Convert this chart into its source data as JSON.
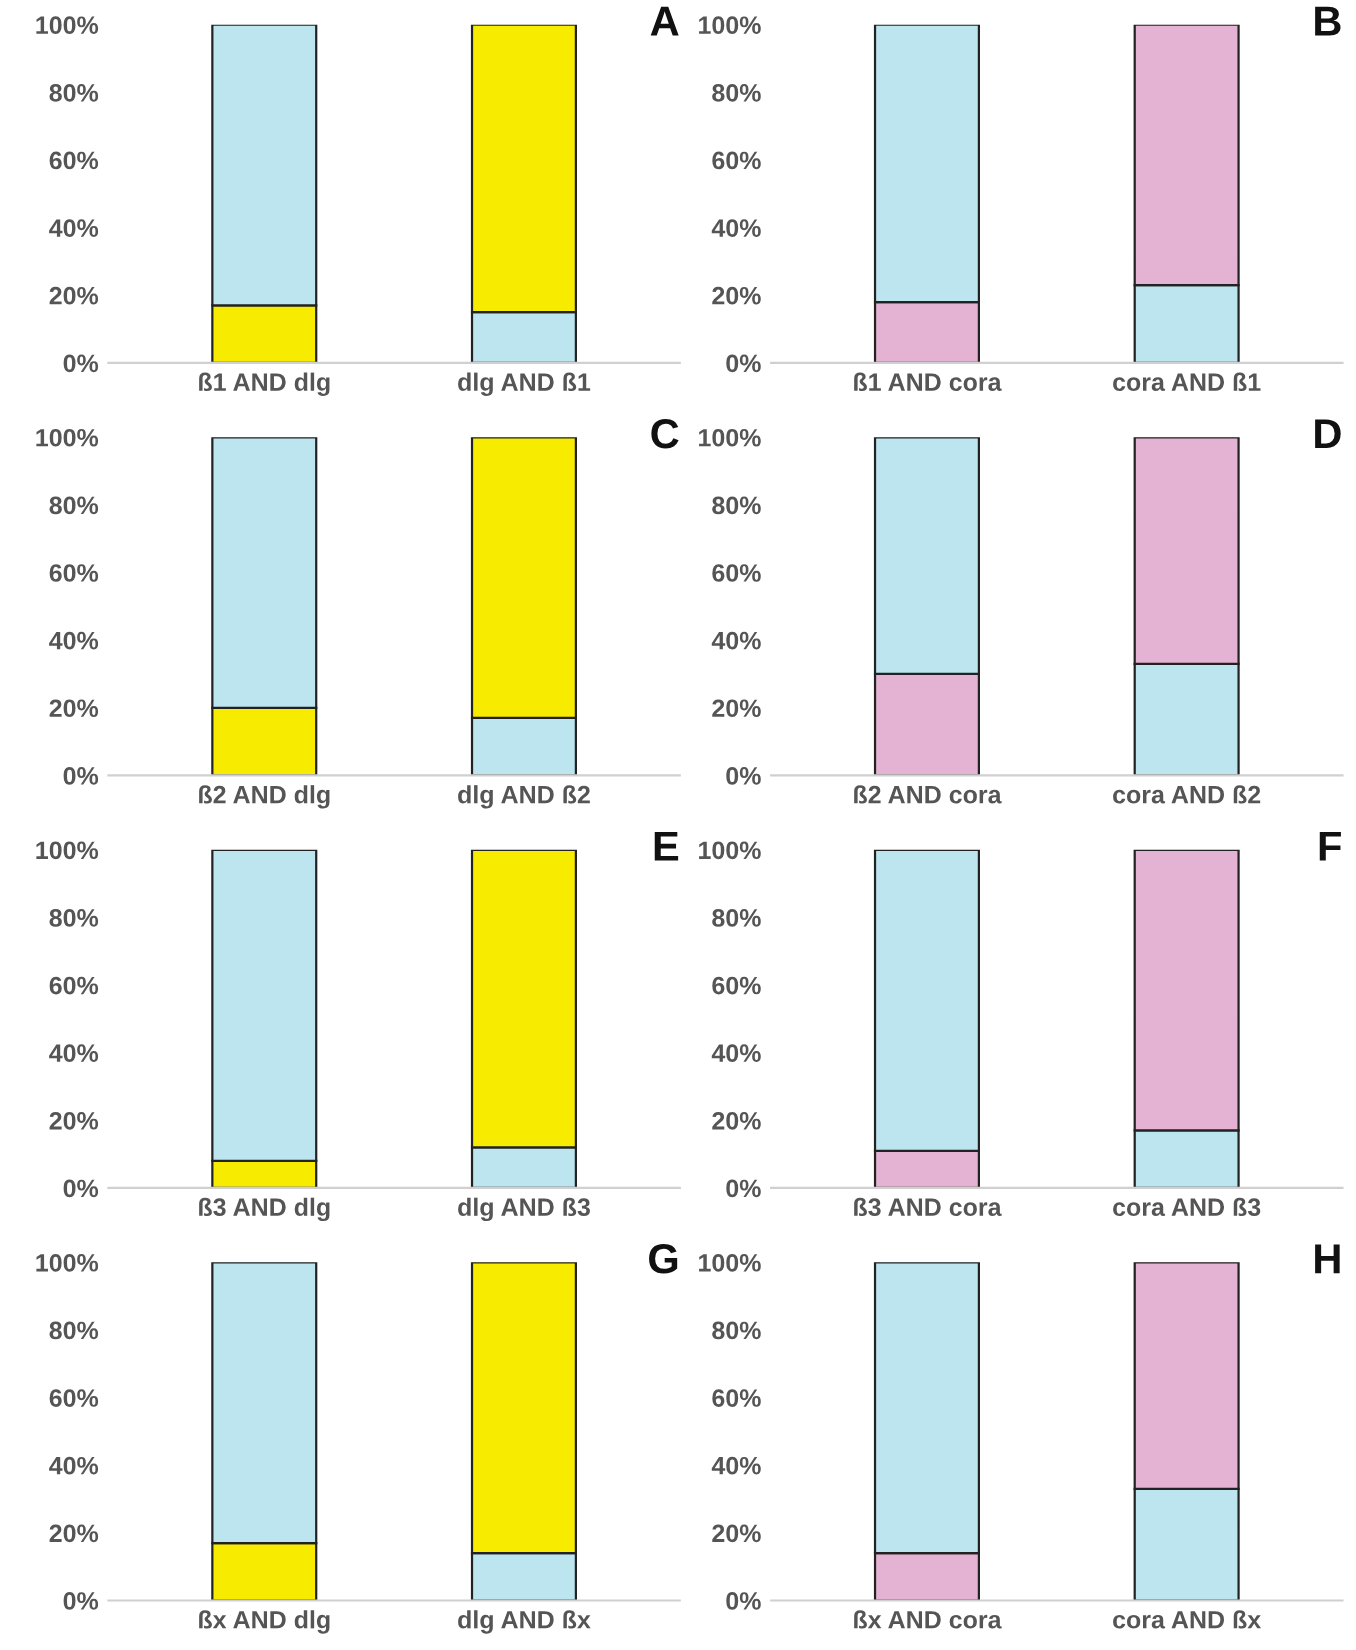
{
  "chart_data": [
    {
      "type": "bar",
      "title": "A",
      "stacked": true,
      "categories": [
        "ß1 AND dlg",
        "dlg AND ß1"
      ],
      "series": [
        {
          "colors": [
            "#f7ec00",
            "#bde5f0"
          ],
          "values": [
            17,
            15
          ]
        },
        {
          "colors": [
            "#bde5f0",
            "#f7ec00"
          ],
          "values": [
            83,
            85
          ]
        }
      ],
      "ylim": [
        0,
        100
      ],
      "yticks": [
        {
          "value": 0,
          "label": "0%"
        },
        {
          "value": 20,
          "label": "20%"
        },
        {
          "value": 40,
          "label": "40%"
        },
        {
          "value": 60,
          "label": "60%"
        },
        {
          "value": 80,
          "label": "80%"
        },
        {
          "value": 100,
          "label": "100%"
        }
      ],
      "grid": false
    },
    {
      "type": "bar",
      "title": "B",
      "stacked": true,
      "categories": [
        "ß1 AND cora",
        "cora AND ß1"
      ],
      "series": [
        {
          "colors": [
            "#e4b3d3",
            "#bde5f0"
          ],
          "values": [
            18,
            23
          ]
        },
        {
          "colors": [
            "#bde5f0",
            "#e4b3d3"
          ],
          "values": [
            82,
            77
          ]
        }
      ],
      "ylim": [
        0,
        100
      ],
      "yticks": [
        {
          "value": 0,
          "label": "0%"
        },
        {
          "value": 20,
          "label": "20%"
        },
        {
          "value": 40,
          "label": "40%"
        },
        {
          "value": 60,
          "label": "60%"
        },
        {
          "value": 80,
          "label": "80%"
        },
        {
          "value": 100,
          "label": "100%"
        }
      ],
      "grid": false
    },
    {
      "type": "bar",
      "title": "C",
      "stacked": true,
      "categories": [
        "ß2 AND dlg",
        "dlg AND ß2"
      ],
      "series": [
        {
          "colors": [
            "#f7ec00",
            "#bde5f0"
          ],
          "values": [
            20,
            17
          ]
        },
        {
          "colors": [
            "#bde5f0",
            "#f7ec00"
          ],
          "values": [
            80,
            83
          ]
        }
      ],
      "ylim": [
        0,
        100
      ],
      "yticks": [
        {
          "value": 0,
          "label": "0%"
        },
        {
          "value": 20,
          "label": "20%"
        },
        {
          "value": 40,
          "label": "40%"
        },
        {
          "value": 60,
          "label": "60%"
        },
        {
          "value": 80,
          "label": "80%"
        },
        {
          "value": 100,
          "label": "100%"
        }
      ],
      "grid": false
    },
    {
      "type": "bar",
      "title": "D",
      "stacked": true,
      "categories": [
        "ß2 AND cora",
        "cora AND ß2"
      ],
      "series": [
        {
          "colors": [
            "#e4b3d3",
            "#bde5f0"
          ],
          "values": [
            30,
            33
          ]
        },
        {
          "colors": [
            "#bde5f0",
            "#e4b3d3"
          ],
          "values": [
            70,
            67
          ]
        }
      ],
      "ylim": [
        0,
        100
      ],
      "yticks": [
        {
          "value": 0,
          "label": "0%"
        },
        {
          "value": 20,
          "label": "20%"
        },
        {
          "value": 40,
          "label": "40%"
        },
        {
          "value": 60,
          "label": "60%"
        },
        {
          "value": 80,
          "label": "80%"
        },
        {
          "value": 100,
          "label": "100%"
        }
      ],
      "grid": false
    },
    {
      "type": "bar",
      "title": "E",
      "stacked": true,
      "categories": [
        "ß3 AND dlg",
        "dlg AND ß3"
      ],
      "series": [
        {
          "colors": [
            "#f7ec00",
            "#bde5f0"
          ],
          "values": [
            8,
            12
          ]
        },
        {
          "colors": [
            "#bde5f0",
            "#f7ec00"
          ],
          "values": [
            92,
            88
          ]
        }
      ],
      "ylim": [
        0,
        100
      ],
      "yticks": [
        {
          "value": 0,
          "label": "0%"
        },
        {
          "value": 20,
          "label": "20%"
        },
        {
          "value": 40,
          "label": "40%"
        },
        {
          "value": 60,
          "label": "60%"
        },
        {
          "value": 80,
          "label": "80%"
        },
        {
          "value": 100,
          "label": "100%"
        }
      ],
      "grid": false
    },
    {
      "type": "bar",
      "title": "F",
      "stacked": true,
      "categories": [
        "ß3 AND cora",
        "cora AND ß3"
      ],
      "series": [
        {
          "colors": [
            "#e4b3d3",
            "#bde5f0"
          ],
          "values": [
            11,
            17
          ]
        },
        {
          "colors": [
            "#bde5f0",
            "#e4b3d3"
          ],
          "values": [
            89,
            83
          ]
        }
      ],
      "ylim": [
        0,
        100
      ],
      "yticks": [
        {
          "value": 0,
          "label": "0%"
        },
        {
          "value": 20,
          "label": "20%"
        },
        {
          "value": 40,
          "label": "40%"
        },
        {
          "value": 60,
          "label": "60%"
        },
        {
          "value": 80,
          "label": "80%"
        },
        {
          "value": 100,
          "label": "100%"
        }
      ],
      "grid": false
    },
    {
      "type": "bar",
      "title": "G",
      "stacked": true,
      "categories": [
        "ßx AND dlg",
        "dlg AND ßx"
      ],
      "series": [
        {
          "colors": [
            "#f7ec00",
            "#bde5f0"
          ],
          "values": [
            17,
            14
          ]
        },
        {
          "colors": [
            "#bde5f0",
            "#f7ec00"
          ],
          "values": [
            83,
            86
          ]
        }
      ],
      "ylim": [
        0,
        100
      ],
      "yticks": [
        {
          "value": 0,
          "label": "0%"
        },
        {
          "value": 20,
          "label": "20%"
        },
        {
          "value": 40,
          "label": "40%"
        },
        {
          "value": 60,
          "label": "60%"
        },
        {
          "value": 80,
          "label": "80%"
        },
        {
          "value": 100,
          "label": "100%"
        }
      ],
      "grid": false
    },
    {
      "type": "bar",
      "title": "H",
      "stacked": true,
      "categories": [
        "ßx AND cora",
        "cora AND ßx"
      ],
      "series": [
        {
          "colors": [
            "#e4b3d3",
            "#bde5f0"
          ],
          "values": [
            14,
            33
          ]
        },
        {
          "colors": [
            "#bde5f0",
            "#e4b3d3"
          ],
          "values": [
            86,
            67
          ]
        }
      ],
      "ylim": [
        0,
        100
      ],
      "yticks": [
        {
          "value": 0,
          "label": "0%"
        },
        {
          "value": 20,
          "label": "20%"
        },
        {
          "value": 40,
          "label": "40%"
        },
        {
          "value": 60,
          "label": "60%"
        },
        {
          "value": 80,
          "label": "80%"
        },
        {
          "value": 100,
          "label": "100%"
        }
      ],
      "grid": false
    }
  ]
}
